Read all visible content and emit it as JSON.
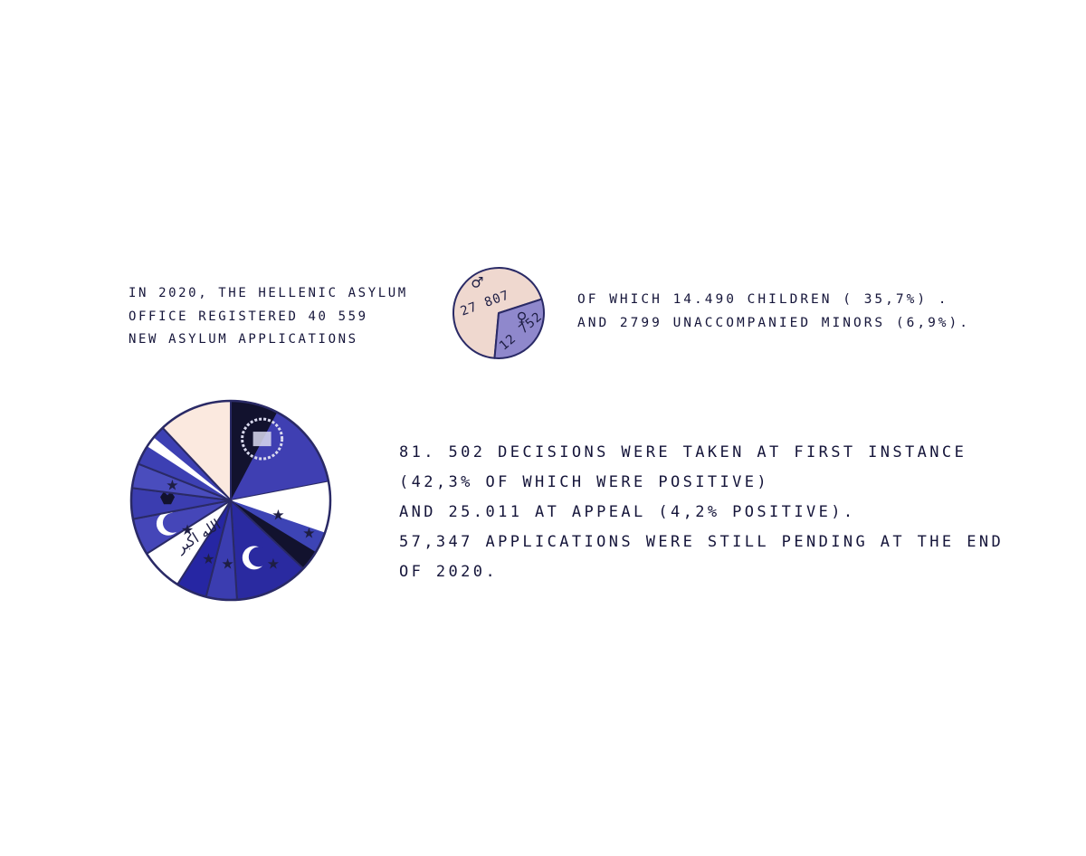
{
  "intro": {
    "lines": [
      "In 2020, the Hellenic Asylum",
      "office registered 40 559",
      "new asylum applications"
    ]
  },
  "children": {
    "lines": [
      "of which 14.490 children ( 35,7%) .",
      "and 2799 unaccompanied minors (6,9%)."
    ]
  },
  "decisions": {
    "lines": [
      "81. 502 decisions were taken at first instance",
      "(42,3% of which were positive)",
      "and 25.011 at appeal (4,2% positive).",
      "57,347 applications were still pending at the end",
      "of 2020."
    ]
  },
  "chart_data": [
    {
      "type": "pie",
      "title": "",
      "series": [
        {
          "name": "♂",
          "label": "27 807",
          "value": 27807,
          "color": "#efd8cf"
        },
        {
          "name": "♀",
          "label": "12 752",
          "value": 12752,
          "color": "#8f88cc"
        }
      ]
    },
    {
      "type": "pie",
      "title": "",
      "slices": [
        {
          "value": 22,
          "color": "#3f3fb2",
          "icon": "afghanistan-flag-icon"
        },
        {
          "value": 15,
          "color": "#3d44b5",
          "icon": "syria-flag-icon"
        },
        {
          "value": 12,
          "color": "#2a2aa0",
          "icon": "turkey-flag-icon"
        },
        {
          "value": 5,
          "color": "#3b3db0",
          "icon": "star-flag-icon"
        },
        {
          "value": 5,
          "color": "#2626a3",
          "icon": "star-flag-icon"
        },
        {
          "value": 7,
          "color": "#ffffff",
          "icon": "iraq-flag-icon"
        },
        {
          "value": 6,
          "color": "#4546b8",
          "icon": "crescent-flag-icon"
        },
        {
          "value": 5,
          "color": "#3b3db0",
          "icon": "albania-flag-icon"
        },
        {
          "value": 4,
          "color": "#4a4dbd",
          "icon": "star-flag-icon"
        },
        {
          "value": 7,
          "color": "#3d40b3",
          "icon": "stripe-flag-icon"
        },
        {
          "value": 12,
          "color": "#fbe9df",
          "icon": "other-icon"
        }
      ]
    }
  ]
}
